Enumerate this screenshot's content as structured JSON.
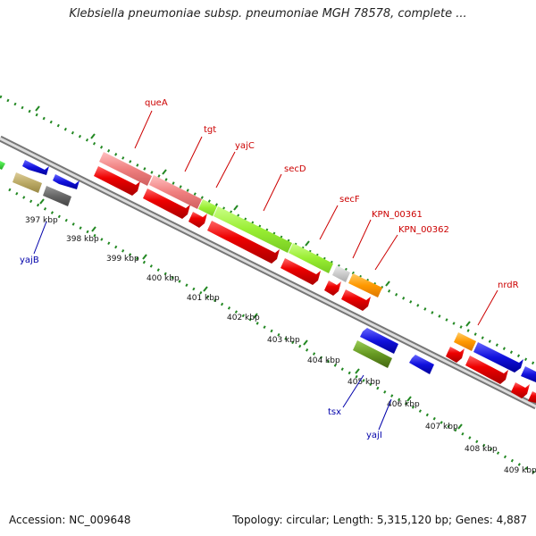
{
  "title": "Klebsiella pneumoniae subsp. pneumoniae MGH 78578, complete ...",
  "accession": "Accession: NC_009648",
  "summary": "Topology: circular; Length: 5,315,120 bp; Genes: 4,887",
  "kbp_labels": [
    "397 kbp",
    "398 kbp",
    "399 kbp",
    "400 kbp",
    "401 kbp",
    "402 kbp",
    "403 kbp",
    "404 kbp",
    "405 kbp",
    "406 kbp",
    "407 kbp",
    "408 kbp",
    "409 kbp"
  ],
  "gene_labels": {
    "queA": "queA",
    "tgt": "tgt",
    "yajC": "yajC",
    "secD": "secD",
    "secF": "secF",
    "kpn361": "KPN_00361",
    "kpn362": "KPN_00362",
    "nrdR": "nrdR",
    "yajB": "yajB",
    "tsx": "tsx",
    "yajI": "yajI"
  },
  "colors": {
    "cds": "#ee0000",
    "gene_pink": "#f08080",
    "gene_lime": "#99ee33",
    "gene_orange": "#ff9900",
    "gene_blue": "#1111dd",
    "gene_olive": "#669922",
    "gene_khaki": "#bbaa66",
    "gene_gray": "#666666",
    "ruler": "#228822",
    "backbone": "#888888"
  }
}
